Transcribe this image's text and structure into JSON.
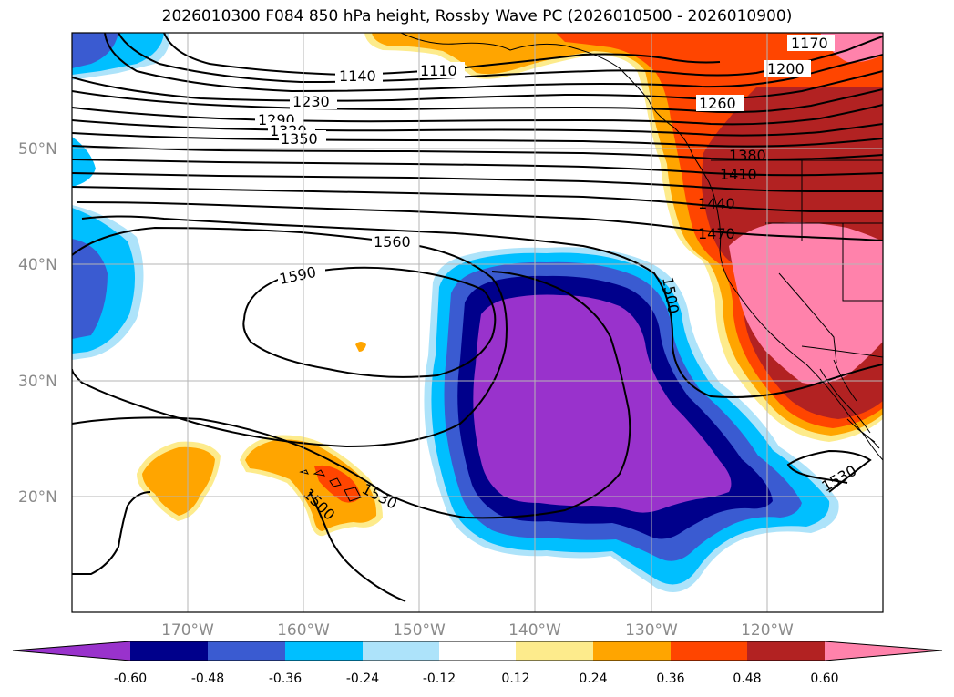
{
  "title": "2026010300 F084 850 hPa height, Rossby Wave PC (2026010500 - 2026010900)",
  "lat_labels": [
    "50°N",
    "40°N",
    "30°N",
    "20°N"
  ],
  "lon_labels": [
    "170°W",
    "160°W",
    "150°W",
    "140°W",
    "130°W",
    "120°W"
  ],
  "contour_labels": [
    "1140",
    "1110",
    "1170",
    "1200",
    "1230",
    "1260",
    "1290",
    "1320",
    "1350",
    "1380",
    "1410",
    "1440",
    "1470",
    "1500",
    "1530",
    "1530",
    "1560",
    "1590",
    "1500"
  ],
  "colorbar": {
    "ticks": [
      "-0.60",
      "-0.48",
      "-0.36",
      "-0.24",
      "-0.12",
      "0.12",
      "0.24",
      "0.36",
      "0.48",
      "0.60"
    ],
    "colors": [
      "#9932CC",
      "#00008B",
      "#3A5BD1",
      "#00BFFF",
      "#ADE3FA",
      "#FFFFFF",
      "#FDEB8C",
      "#FFA500",
      "#FF4500",
      "#B22222",
      "#FF82AB"
    ]
  },
  "field_colors": {
    "purple": "#9932CC",
    "navy": "#00008B",
    "royal": "#3A5BD1",
    "sky": "#00BFFF",
    "pale_blue": "#ADE3FA",
    "pale_yellow": "#FDEB8C",
    "orange": "#FFA500",
    "red_orange": "#FF4500",
    "firebrick": "#B22222",
    "pink": "#FF82AB"
  }
}
